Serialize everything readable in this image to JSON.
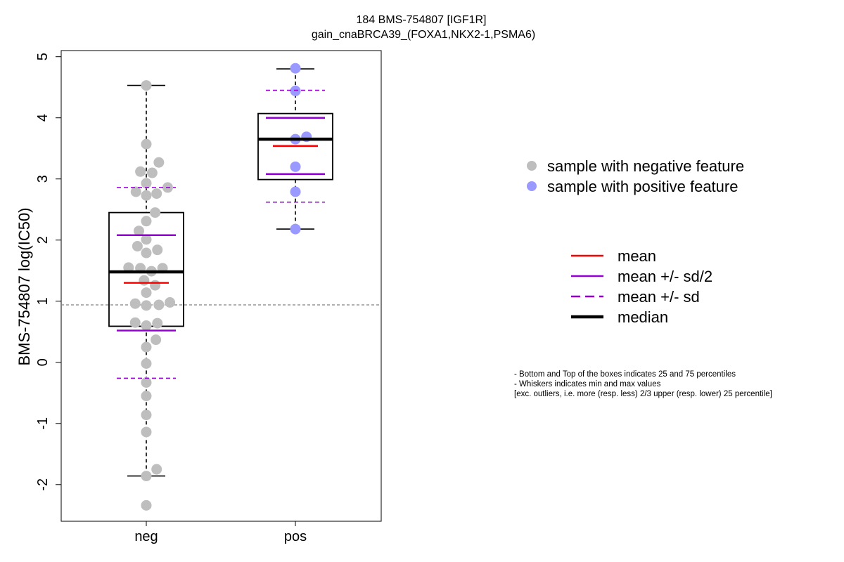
{
  "chart_data": {
    "type": "box",
    "title": "184 BMS-754807 [IGF1R]",
    "subtitle": "gain_cnaBRCA39_(FOXA1,NKX2-1,PSMA6)",
    "xlabel": "",
    "ylabel": "BMS-754807 log(IC50)",
    "ylim": [
      -2.6,
      5.1
    ],
    "yticks": [
      -2,
      -1,
      0,
      1,
      2,
      3,
      4,
      5
    ],
    "ytick_labels": [
      "-2",
      "-1",
      "0",
      "1",
      "2",
      "3",
      "4",
      "5"
    ],
    "categories": [
      "neg",
      "pos"
    ],
    "reference_line": 0.94,
    "colors": {
      "neg_points": "#bebebe",
      "pos_points": "#9999ff",
      "mean": "#ff0000",
      "sd": "#9400d3",
      "median": "#000000",
      "reference": "#808080"
    },
    "groups": [
      {
        "name": "neg",
        "whisker_low": -1.86,
        "q1": 0.59,
        "median": 1.48,
        "q3": 2.45,
        "whisker_high": 4.53,
        "mean": 1.3,
        "mean_minus_half_sd": 0.52,
        "mean_plus_half_sd": 2.08,
        "mean_minus_sd": -0.26,
        "mean_plus_sd": 2.86,
        "points": [
          {
            "x": 0,
            "y": 4.53
          },
          {
            "x": 0,
            "y": 3.57
          },
          {
            "x": 0.17,
            "y": 3.27
          },
          {
            "x": -0.08,
            "y": 3.12
          },
          {
            "x": 0.08,
            "y": 3.1
          },
          {
            "x": 0,
            "y": 2.93
          },
          {
            "x": 0.29,
            "y": 2.86
          },
          {
            "x": -0.14,
            "y": 2.79
          },
          {
            "x": 0,
            "y": 2.73
          },
          {
            "x": 0.14,
            "y": 2.76
          },
          {
            "x": 0.12,
            "y": 2.45
          },
          {
            "x": 0,
            "y": 2.31
          },
          {
            "x": -0.1,
            "y": 2.15
          },
          {
            "x": 0,
            "y": 2.01
          },
          {
            "x": -0.12,
            "y": 1.9
          },
          {
            "x": 0,
            "y": 1.79
          },
          {
            "x": 0.15,
            "y": 1.84
          },
          {
            "x": -0.24,
            "y": 1.55
          },
          {
            "x": -0.08,
            "y": 1.54
          },
          {
            "x": 0.07,
            "y": 1.49
          },
          {
            "x": 0.22,
            "y": 1.54
          },
          {
            "x": -0.03,
            "y": 1.34
          },
          {
            "x": 0.12,
            "y": 1.26
          },
          {
            "x": 0,
            "y": 1.14
          },
          {
            "x": -0.15,
            "y": 0.96
          },
          {
            "x": 0,
            "y": 0.93
          },
          {
            "x": 0.17,
            "y": 0.94
          },
          {
            "x": 0.32,
            "y": 0.98
          },
          {
            "x": -0.15,
            "y": 0.65
          },
          {
            "x": 0,
            "y": 0.6
          },
          {
            "x": 0.15,
            "y": 0.64
          },
          {
            "x": 0.13,
            "y": 0.37
          },
          {
            "x": 0,
            "y": 0.25
          },
          {
            "x": 0,
            "y": -0.02
          },
          {
            "x": 0,
            "y": -0.33
          },
          {
            "x": 0,
            "y": -0.55
          },
          {
            "x": 0,
            "y": -0.86
          },
          {
            "x": 0,
            "y": -1.14
          },
          {
            "x": 0.14,
            "y": -1.75
          },
          {
            "x": 0,
            "y": -1.86
          },
          {
            "x": 0,
            "y": -2.34
          }
        ]
      },
      {
        "name": "pos",
        "whisker_low": 2.18,
        "q1": 2.99,
        "median": 3.65,
        "q3": 4.07,
        "whisker_high": 4.8,
        "mean": 3.54,
        "mean_minus_half_sd": 3.08,
        "mean_plus_half_sd": 4.0,
        "mean_minus_sd": 2.62,
        "mean_plus_sd": 4.45,
        "points": [
          {
            "x": 0,
            "y": 4.81
          },
          {
            "x": 0,
            "y": 4.44
          },
          {
            "x": 0,
            "y": 3.65
          },
          {
            "x": 0.15,
            "y": 3.69
          },
          {
            "x": 0,
            "y": 3.2
          },
          {
            "x": 0,
            "y": 2.79
          },
          {
            "x": 0,
            "y": 2.18
          }
        ]
      }
    ],
    "legend_points": [
      {
        "label": "sample with negative feature",
        "color": "#bebebe"
      },
      {
        "label": "sample with positive feature",
        "color": "#9999ff"
      }
    ],
    "legend_lines": [
      {
        "label": "mean",
        "color": "#ff0000",
        "style": "solid",
        "weight": "normal"
      },
      {
        "label": "mean +/- sd/2",
        "color": "#9400d3",
        "style": "solid",
        "weight": "normal"
      },
      {
        "label": "mean +/- sd",
        "color": "#9400d3",
        "style": "dashed",
        "weight": "normal"
      },
      {
        "label": "median",
        "color": "#000000",
        "style": "solid",
        "weight": "thick"
      }
    ],
    "notes": [
      "- Bottom and Top of the boxes indicates 25 and 75 percentiles",
      "- Whiskers indicates min and max values",
      "[exc. outliers, i.e. more (resp. less) 2/3 upper (resp. lower) 25 percentile]"
    ]
  }
}
